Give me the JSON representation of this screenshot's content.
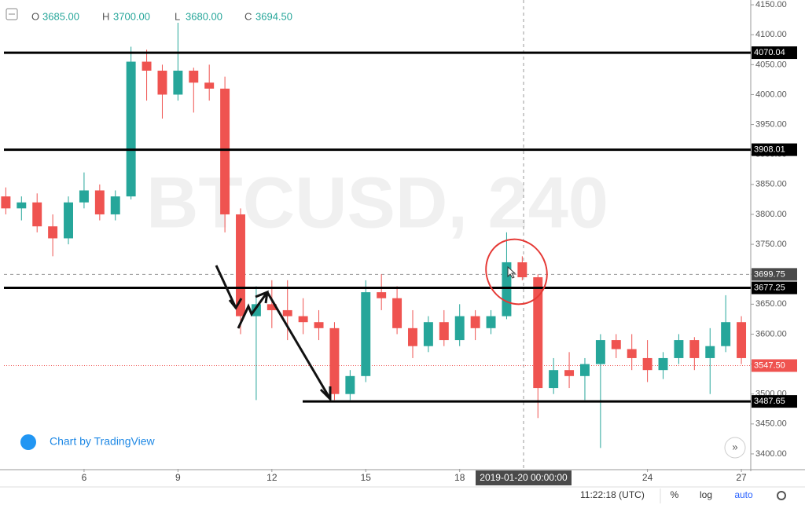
{
  "chart_data": {
    "type": "candlestick",
    "watermark": "BTCUSD, 240",
    "ohlc_legend": [
      {
        "label": "O",
        "value": "3685.00"
      },
      {
        "label": "H",
        "value": "3700.00"
      },
      {
        "label": "L",
        "value": "3680.00"
      },
      {
        "label": "C",
        "value": "3694.50"
      }
    ],
    "x": [
      3.5,
      4,
      4.5,
      5,
      5.5,
      6,
      6.5,
      7,
      7.5,
      8,
      8.5,
      9,
      9.5,
      10,
      10.5,
      11,
      11.5,
      12,
      12.5,
      13,
      13.5,
      14,
      14.5,
      15,
      15.5,
      16,
      16.5,
      17,
      17.5,
      18,
      18.5,
      19,
      19.5,
      20,
      20.5,
      21,
      21.5,
      22,
      22.5,
      23,
      23.5,
      24,
      24.5,
      25,
      25.5,
      26,
      26.5,
      27
    ],
    "candles": [
      [
        3830,
        3845,
        3800,
        3810
      ],
      [
        3810,
        3830,
        3790,
        3820
      ],
      [
        3820,
        3835,
        3770,
        3780
      ],
      [
        3780,
        3800,
        3730,
        3760
      ],
      [
        3760,
        3830,
        3750,
        3820
      ],
      [
        3820,
        3870,
        3810,
        3840
      ],
      [
        3840,
        3850,
        3790,
        3800
      ],
      [
        3800,
        3840,
        3790,
        3830
      ],
      [
        3830,
        4080,
        3825,
        4055
      ],
      [
        4055,
        4075,
        3990,
        4040
      ],
      [
        4040,
        4050,
        3960,
        4000
      ],
      [
        4000,
        4120,
        3990,
        4040
      ],
      [
        4040,
        4045,
        3970,
        4020
      ],
      [
        4020,
        4050,
        3990,
        4010
      ],
      [
        4010,
        4030,
        3770,
        3800
      ],
      [
        3800,
        3810,
        3600,
        3630
      ],
      [
        3630,
        3680,
        3490,
        3650
      ],
      [
        3650,
        3690,
        3610,
        3640
      ],
      [
        3640,
        3690,
        3590,
        3630
      ],
      [
        3630,
        3660,
        3600,
        3620
      ],
      [
        3620,
        3640,
        3590,
        3610
      ],
      [
        3610,
        3620,
        3490,
        3500
      ],
      [
        3500,
        3540,
        3490,
        3530
      ],
      [
        3530,
        3690,
        3520,
        3670
      ],
      [
        3670,
        3700,
        3640,
        3660
      ],
      [
        3660,
        3680,
        3600,
        3610
      ],
      [
        3610,
        3640,
        3560,
        3580
      ],
      [
        3580,
        3630,
        3570,
        3620
      ],
      [
        3620,
        3640,
        3580,
        3590
      ],
      [
        3590,
        3650,
        3580,
        3630
      ],
      [
        3630,
        3640,
        3590,
        3610
      ],
      [
        3610,
        3640,
        3600,
        3630
      ],
      [
        3630,
        3770,
        3625,
        3720
      ],
      [
        3720,
        3730,
        3690,
        3695
      ],
      [
        3695,
        3700,
        3460,
        3510
      ],
      [
        3510,
        3560,
        3500,
        3540
      ],
      [
        3540,
        3570,
        3510,
        3530
      ],
      [
        3530,
        3560,
        3490,
        3550
      ],
      [
        3550,
        3600,
        3410,
        3590
      ],
      [
        3590,
        3600,
        3560,
        3575
      ],
      [
        3575,
        3600,
        3540,
        3560
      ],
      [
        3560,
        3590,
        3520,
        3540
      ],
      [
        3540,
        3570,
        3525,
        3560
      ],
      [
        3560,
        3600,
        3550,
        3590
      ],
      [
        3590,
        3595,
        3540,
        3560
      ],
      [
        3560,
        3610,
        3500,
        3580
      ],
      [
        3580,
        3665,
        3570,
        3620
      ],
      [
        3620,
        3630,
        3550,
        3560
      ]
    ],
    "up_color": "#26a69a",
    "down_color": "#ef5350",
    "xlim": [
      3.44,
      27.3
    ],
    "xticks": [
      6,
      9,
      12,
      15,
      18,
      24,
      27
    ],
    "ylim": [
      3375,
      4158
    ],
    "yticks": [
      {
        "value": 3400,
        "label": "3400.00"
      },
      {
        "value": 3450,
        "label": "3450.00"
      },
      {
        "value": 3500,
        "label": "3500.00"
      },
      {
        "value": 3550,
        "label": "3550.00"
      },
      {
        "value": 3600,
        "label": "3600.00"
      },
      {
        "value": 3650,
        "label": "3650.00"
      },
      {
        "value": 3700,
        "label": "3700.00"
      },
      {
        "value": 3750,
        "label": "3750.00"
      },
      {
        "value": 3800,
        "label": "3800.00"
      },
      {
        "value": 3850,
        "label": "3850.00"
      },
      {
        "value": 3900,
        "label": "3900.00"
      },
      {
        "value": 3950,
        "label": "3950.00"
      },
      {
        "value": 4000,
        "label": "4000.00"
      },
      {
        "value": 4050,
        "label": "4050.00"
      },
      {
        "value": 4100,
        "label": "4100.00"
      },
      {
        "value": 4150,
        "label": "4150.00"
      }
    ],
    "levels": [
      4070.04,
      3908.01,
      3677.25,
      3487.65
    ],
    "crosshair_price": 3699.75,
    "crosshair_date": "2019-01-20 00:00:00",
    "last_price": {
      "value": 3547.5,
      "label": "3547.50"
    }
  },
  "branding": "Chart by TradingView",
  "footer": {
    "time": "11:22:18 (UTC)",
    "percent": "%",
    "log": "log",
    "auto": "auto"
  }
}
